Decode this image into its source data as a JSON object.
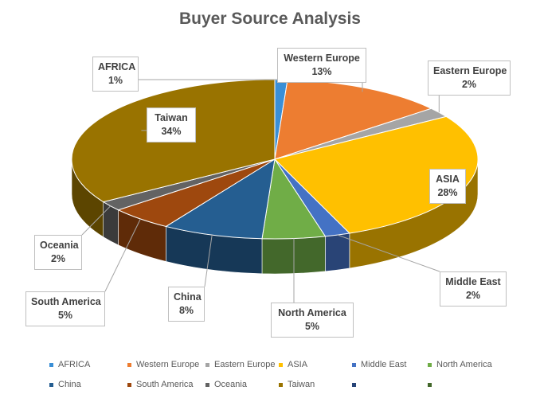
{
  "chart_data": {
    "type": "pie",
    "title": "Buyer Source Analysis",
    "slices": [
      {
        "name": "AFRICA",
        "value": 1,
        "label": "1%",
        "color": "#3A8FD6"
      },
      {
        "name": "Western Europe",
        "value": 13,
        "label": "13%",
        "color": "#ED7D31"
      },
      {
        "name": "Eastern Europe",
        "value": 2,
        "label": "2%",
        "color": "#A5A5A5"
      },
      {
        "name": "ASIA",
        "value": 28,
        "label": "28%",
        "color": "#FFC000"
      },
      {
        "name": "Middle East",
        "value": 2,
        "label": "2%",
        "color": "#4472C4"
      },
      {
        "name": "North America",
        "value": 5,
        "label": "5%",
        "color": "#70AD47"
      },
      {
        "name": "China",
        "value": 8,
        "label": "8%",
        "color": "#255E91"
      },
      {
        "name": "South America",
        "value": 5,
        "label": "5%",
        "color": "#9E480E"
      },
      {
        "name": "Oceania",
        "value": 2,
        "label": "2%",
        "color": "#636363"
      },
      {
        "name": "Taiwan",
        "value": 34,
        "label": "34%",
        "color": "#997300"
      }
    ],
    "legend": {
      "placement": "bottom",
      "entries": [
        "AFRICA",
        "Western Europe",
        "Eastern Europe",
        "ASIA",
        "Middle East",
        "North America",
        "China",
        "South America",
        "Oceania",
        "Taiwan",
        "",
        ""
      ],
      "extra_colors": [
        "#264478",
        "#43682B"
      ]
    }
  }
}
